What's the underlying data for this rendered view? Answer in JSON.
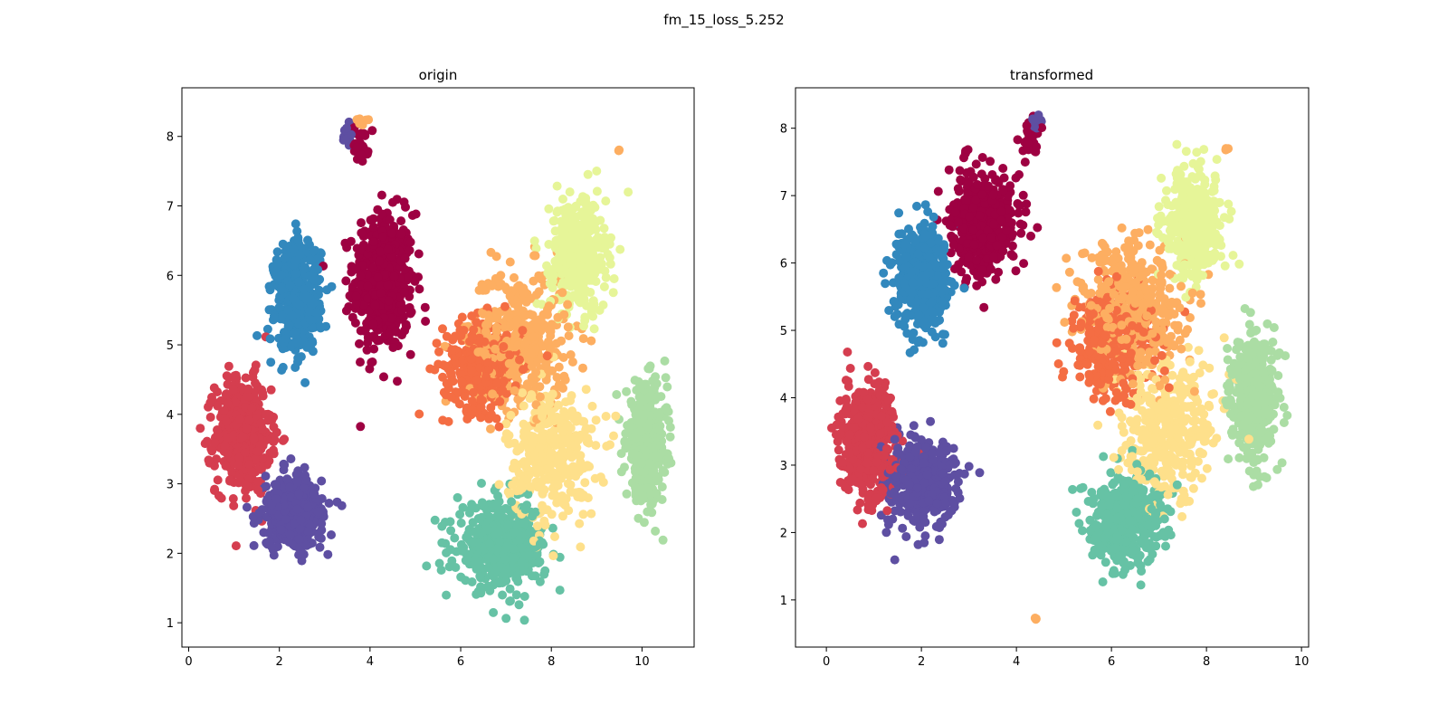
{
  "figure_title": "fm_15_loss_5.252",
  "palette": [
    "#9e0142",
    "#d53e4f",
    "#f46d43",
    "#fdae61",
    "#fee08b",
    "#e6f598",
    "#abdda4",
    "#66c2a5",
    "#3288bd",
    "#5e4fa2"
  ],
  "chart_data": [
    {
      "type": "scatter",
      "title": "origin",
      "xlabel": "",
      "ylabel": "",
      "xlim": [
        -0.15,
        11.15
      ],
      "ylim": [
        0.65,
        8.7
      ],
      "xticks": [
        0,
        2,
        4,
        6,
        8,
        10
      ],
      "yticks": [
        1,
        2,
        3,
        4,
        5,
        6,
        7,
        8
      ],
      "grid": false,
      "legend": "none",
      "clusters": [
        {
          "center": [
            4.3,
            5.9
          ],
          "spread": [
            0.6,
            0.9
          ],
          "color": "#9e0142",
          "count": 520
        },
        {
          "center": [
            3.8,
            7.9
          ],
          "spread": [
            0.15,
            0.25
          ],
          "color": "#9e0142",
          "count": 30
        },
        {
          "center": [
            1.2,
            3.7
          ],
          "spread": [
            0.55,
            0.75
          ],
          "color": "#d53e4f",
          "count": 520
        },
        {
          "center": [
            6.5,
            4.7
          ],
          "spread": [
            0.8,
            0.6
          ],
          "color": "#f46d43",
          "count": 320
        },
        {
          "center": [
            7.3,
            5.1
          ],
          "spread": [
            1.0,
            0.9
          ],
          "color": "#fdae61",
          "count": 380
        },
        {
          "center": [
            8.0,
            3.4
          ],
          "spread": [
            0.9,
            0.9
          ],
          "color": "#fee08b",
          "count": 360
        },
        {
          "center": [
            8.6,
            6.3
          ],
          "spread": [
            0.55,
            0.75
          ],
          "color": "#e6f598",
          "count": 380
        },
        {
          "center": [
            10.1,
            3.6
          ],
          "spread": [
            0.4,
            0.75
          ],
          "color": "#abdda4",
          "count": 420
        },
        {
          "center": [
            6.9,
            2.1
          ],
          "spread": [
            0.9,
            0.55
          ],
          "color": "#66c2a5",
          "count": 440
        },
        {
          "center": [
            2.4,
            5.7
          ],
          "spread": [
            0.45,
            0.7
          ],
          "color": "#3288bd",
          "count": 480
        },
        {
          "center": [
            2.3,
            2.6
          ],
          "spread": [
            0.6,
            0.45
          ],
          "color": "#5e4fa2",
          "count": 440
        },
        {
          "center": [
            3.5,
            8.0
          ],
          "spread": [
            0.1,
            0.15
          ],
          "color": "#5e4fa2",
          "count": 18
        },
        {
          "center": [
            3.85,
            8.25
          ],
          "spread": [
            0.15,
            0.06
          ],
          "color": "#fdae61",
          "count": 8
        },
        {
          "center": [
            9.5,
            7.8
          ],
          "spread": [
            0.02,
            0.02
          ],
          "color": "#fdae61",
          "count": 2
        }
      ]
    },
    {
      "type": "scatter",
      "title": "transformed",
      "xlabel": "",
      "ylabel": "",
      "xlim": [
        -0.65,
        10.15
      ],
      "ylim": [
        0.3,
        8.6
      ],
      "xticks": [
        0,
        2,
        4,
        6,
        8,
        10
      ],
      "yticks": [
        1,
        2,
        3,
        4,
        5,
        6,
        7,
        8
      ],
      "grid": false,
      "legend": "none",
      "clusters": [
        {
          "center": [
            3.3,
            6.6
          ],
          "spread": [
            0.6,
            0.7
          ],
          "color": "#9e0142",
          "count": 480
        },
        {
          "center": [
            4.3,
            7.9
          ],
          "spread": [
            0.15,
            0.3
          ],
          "color": "#9e0142",
          "count": 30
        },
        {
          "center": [
            0.9,
            3.4
          ],
          "spread": [
            0.5,
            0.75
          ],
          "color": "#d53e4f",
          "count": 520
        },
        {
          "center": [
            6.0,
            4.8
          ],
          "spread": [
            0.8,
            0.7
          ],
          "color": "#f46d43",
          "count": 320
        },
        {
          "center": [
            6.5,
            5.4
          ],
          "spread": [
            1.0,
            0.9
          ],
          "color": "#fdae61",
          "count": 380
        },
        {
          "center": [
            7.2,
            3.5
          ],
          "spread": [
            0.9,
            0.9
          ],
          "color": "#fee08b",
          "count": 360
        },
        {
          "center": [
            7.7,
            6.6
          ],
          "spread": [
            0.55,
            0.7
          ],
          "color": "#e6f598",
          "count": 380
        },
        {
          "center": [
            9.0,
            4.0
          ],
          "spread": [
            0.45,
            0.8
          ],
          "color": "#abdda4",
          "count": 420
        },
        {
          "center": [
            6.3,
            2.2
          ],
          "spread": [
            0.7,
            0.6
          ],
          "color": "#66c2a5",
          "count": 440
        },
        {
          "center": [
            2.0,
            5.8
          ],
          "spread": [
            0.5,
            0.7
          ],
          "color": "#3288bd",
          "count": 480
        },
        {
          "center": [
            2.0,
            2.7
          ],
          "spread": [
            0.65,
            0.55
          ],
          "color": "#5e4fa2",
          "count": 440
        },
        {
          "center": [
            4.4,
            8.1
          ],
          "spread": [
            0.12,
            0.12
          ],
          "color": "#5e4fa2",
          "count": 16
        },
        {
          "center": [
            4.4,
            0.72
          ],
          "spread": [
            0.03,
            0.03
          ],
          "color": "#fdae61",
          "count": 3
        },
        {
          "center": [
            8.4,
            7.7
          ],
          "spread": [
            0.03,
            0.03
          ],
          "color": "#fdae61",
          "count": 3
        }
      ]
    }
  ]
}
